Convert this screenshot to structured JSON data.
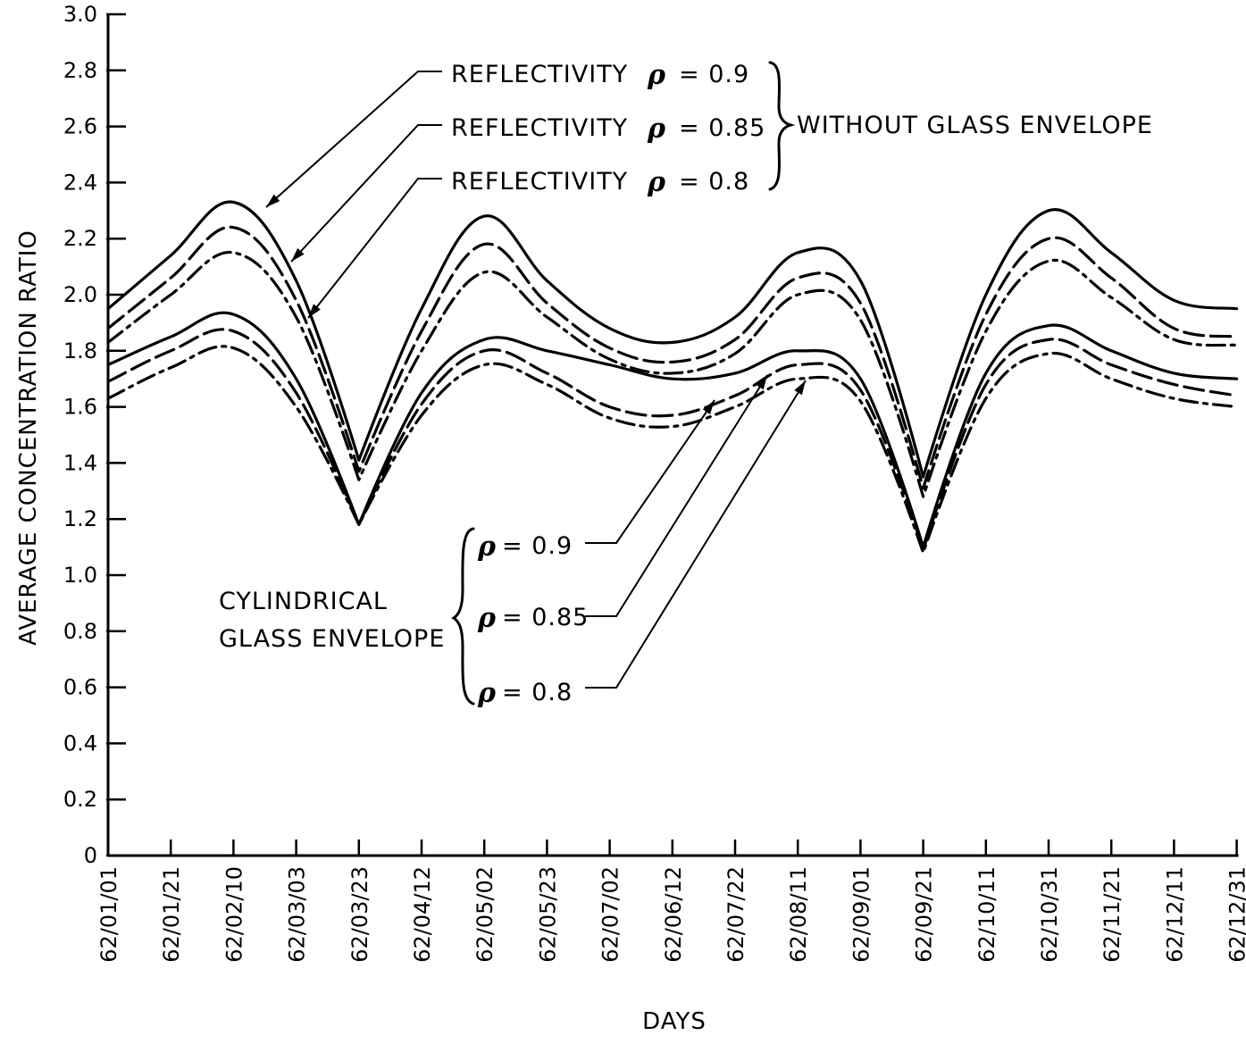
{
  "chart_data": {
    "type": "line",
    "title": "",
    "xlabel": "DAYS",
    "ylabel": "AVERAGE CONCENTRATION RATIO",
    "ylim": [
      0,
      3.0
    ],
    "y_ticks": [
      "0",
      "0.2",
      "0.4",
      "0.6",
      "0.8",
      "1.0",
      "1.2",
      "1.4",
      "1.6",
      "1.8",
      "2.0",
      "2.2",
      "2.4",
      "2.6",
      "2.8",
      "3.0"
    ],
    "categories": [
      "62/01/01",
      "62/01/21",
      "62/02/10",
      "62/03/03",
      "62/03/23",
      "62/04/12",
      "62/05/02",
      "62/05/23",
      "62/07/02",
      "62/06/12",
      "62/07/22",
      "62/08/11",
      "62/09/01",
      "62/09/21",
      "62/10/11",
      "62/10/31",
      "62/11/21",
      "62/12/11",
      "62/12/31"
    ],
    "grid": false,
    "series": [
      {
        "name": "REFLECTIVITY ρ = 0.9",
        "group": "WITHOUT GLASS ENVELOPE",
        "style": "solid",
        "values": [
          1.95,
          2.14,
          2.33,
          2.05,
          1.41,
          1.95,
          2.28,
          2.05,
          1.88,
          1.83,
          1.92,
          2.15,
          2.05,
          1.35,
          2.0,
          2.3,
          2.15,
          1.98,
          1.95
        ]
      },
      {
        "name": "REFLECTIVITY ρ = 0.85",
        "group": "WITHOUT GLASS ENVELOPE",
        "style": "dashed",
        "values": [
          1.88,
          2.06,
          2.24,
          1.98,
          1.37,
          1.87,
          2.18,
          1.97,
          1.81,
          1.76,
          1.84,
          2.06,
          1.97,
          1.31,
          1.93,
          2.2,
          2.06,
          1.88,
          1.85
        ]
      },
      {
        "name": "REFLECTIVITY ρ = 0.8",
        "group": "WITHOUT GLASS ENVELOPE",
        "style": "dashdot",
        "values": [
          1.83,
          2.0,
          2.15,
          1.92,
          1.34,
          1.8,
          2.08,
          1.92,
          1.77,
          1.72,
          1.79,
          2.0,
          1.91,
          1.28,
          1.87,
          2.12,
          1.99,
          1.84,
          1.82
        ]
      },
      {
        "name": "ρ = 0.9",
        "group": "CYLINDRICAL GLASS ENVELOPE",
        "style": "solid",
        "values": [
          1.75,
          1.85,
          1.93,
          1.7,
          1.18,
          1.65,
          1.84,
          1.8,
          1.75,
          1.7,
          1.72,
          1.8,
          1.7,
          1.1,
          1.72,
          1.89,
          1.8,
          1.72,
          1.7
        ]
      },
      {
        "name": "ρ = 0.85",
        "group": "CYLINDRICAL GLASS ENVELOPE",
        "style": "dashed",
        "values": [
          1.69,
          1.8,
          1.87,
          1.65,
          1.18,
          1.61,
          1.8,
          1.72,
          1.6,
          1.57,
          1.64,
          1.75,
          1.66,
          1.09,
          1.68,
          1.84,
          1.75,
          1.68,
          1.64
        ]
      },
      {
        "name": "ρ = 0.8",
        "group": "CYLINDRICAL GLASS ENVELOPE",
        "style": "dashdot",
        "values": [
          1.63,
          1.74,
          1.81,
          1.6,
          1.18,
          1.57,
          1.75,
          1.68,
          1.56,
          1.53,
          1.6,
          1.7,
          1.62,
          1.08,
          1.63,
          1.79,
          1.7,
          1.63,
          1.6
        ]
      }
    ]
  },
  "annotations": {
    "group_top_label": "WITHOUT GLASS ENVELOPE",
    "group_bottom_label_line1": "CYLINDRICAL",
    "group_bottom_label_line2": "GLASS ENVELOPE",
    "top_labels": [
      {
        "prefix": "REFLECTIVITY",
        "symbol": "ρ",
        "suffix": "= 0.9"
      },
      {
        "prefix": "REFLECTIVITY",
        "symbol": "ρ",
        "suffix": "= 0.85"
      },
      {
        "prefix": "REFLECTIVITY",
        "symbol": "ρ",
        "suffix": "= 0.8"
      }
    ],
    "bottom_labels": [
      {
        "symbol": "ρ",
        "suffix": "= 0.9"
      },
      {
        "symbol": "ρ",
        "suffix": "= 0.85"
      },
      {
        "symbol": "ρ",
        "suffix": "= 0.8"
      }
    ]
  }
}
